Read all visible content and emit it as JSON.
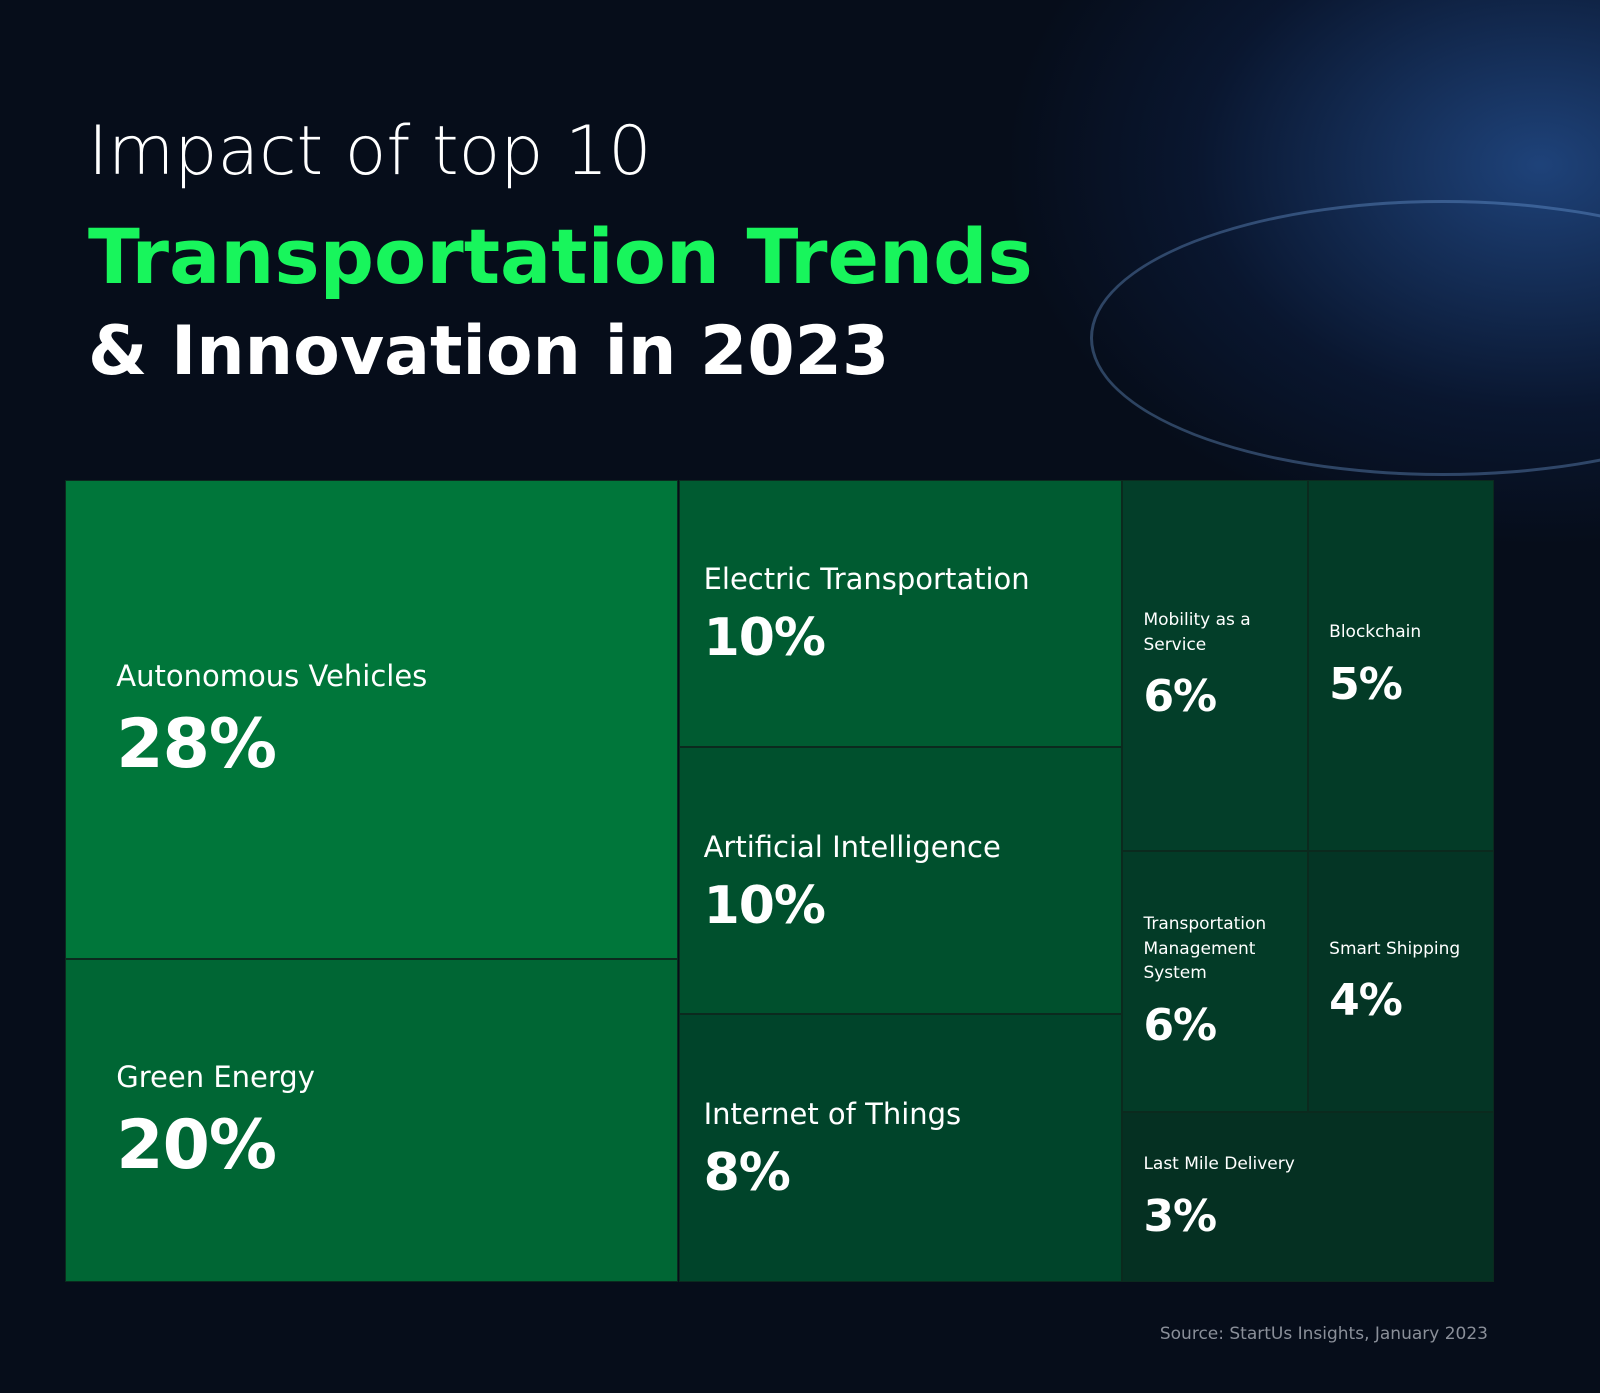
{
  "chart_data": {
    "type": "treemap",
    "title_lines": [
      "Impact of top 10",
      "Transportation Trends",
      "& Innovation in 2023"
    ],
    "categories": [
      "Autonomous Vehicles",
      "Green Energy",
      "Electric Transportation",
      "Artificial Intelligence",
      "Internet of Things",
      "Mobility as a Service",
      "Blockchain",
      "Transportation Management System",
      "Smart Shipping",
      "Last Mile Delivery"
    ],
    "values": [
      28,
      20,
      10,
      10,
      8,
      6,
      5,
      6,
      4,
      3
    ],
    "value_labels": [
      "28%",
      "20%",
      "10%",
      "10%",
      "8%",
      "6%",
      "5%",
      "6%",
      "4%",
      "3%"
    ],
    "colors": [
      "#00763a",
      "#006634",
      "#005b31",
      "#00502d",
      "#00442a",
      "#033e29",
      "#033b27",
      "#033b27",
      "#043525",
      "#053022"
    ],
    "source": "Source: StartUs Insights, January 2023"
  }
}
